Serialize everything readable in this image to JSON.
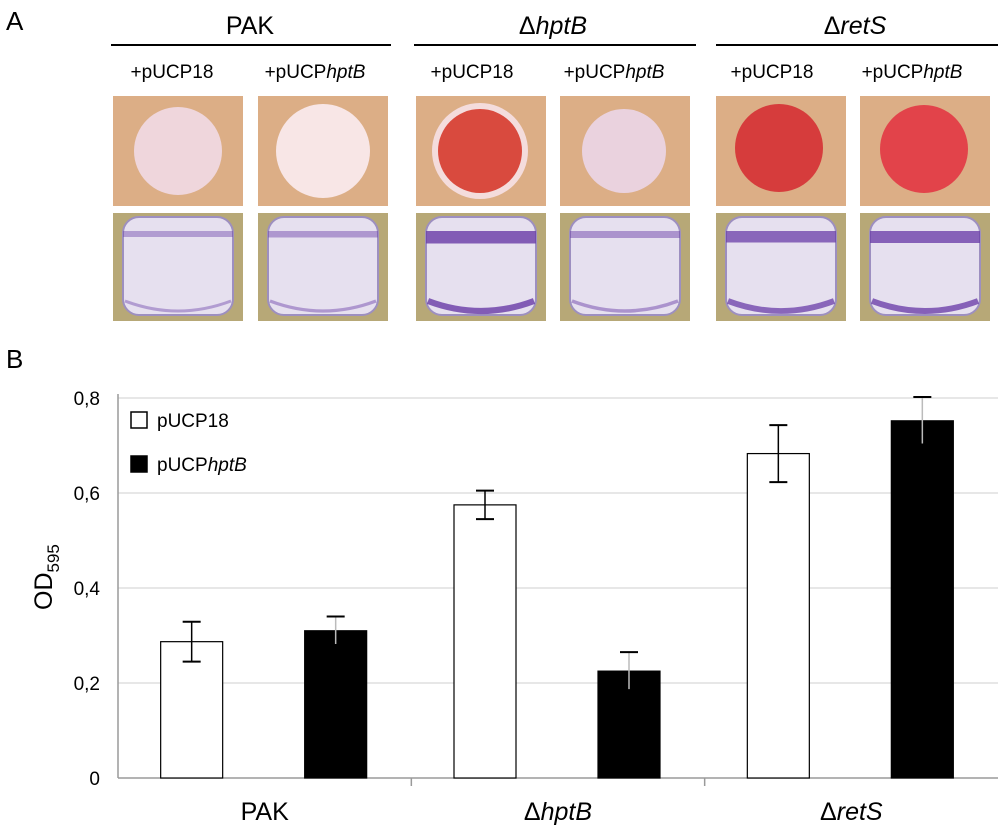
{
  "panel_a": {
    "letter": "A",
    "groups": [
      {
        "label": "PAK",
        "delta": "",
        "italic": ""
      },
      {
        "label": "",
        "delta": "Δ",
        "italic": "hptB"
      },
      {
        "label": "",
        "delta": "Δ",
        "italic": "retS"
      }
    ],
    "plasmids": [
      {
        "prefix": "+pUCP18",
        "italic": ""
      },
      {
        "prefix": "+pUCP",
        "italic": "hptB"
      },
      {
        "prefix": "+pUCP18",
        "italic": ""
      },
      {
        "prefix": "+pUCP",
        "italic": "hptB"
      },
      {
        "prefix": "+pUCP18",
        "italic": ""
      },
      {
        "prefix": "+pUCP",
        "italic": "hptB"
      }
    ],
    "colony_colors": [
      "#efd6dc",
      "#f8e6e6",
      "#d94a3e",
      "#ead2de",
      "#d63c3c",
      "#e2434a"
    ],
    "tube_stain_levels": [
      0.2,
      0.25,
      0.85,
      0.3,
      0.75,
      0.8
    ]
  },
  "panel_b": {
    "letter": "B",
    "chart_data": {
      "type": "bar",
      "categories": [
        {
          "delta": "",
          "italic": "",
          "label": "PAK"
        },
        {
          "delta": "Δ",
          "italic": "hptB",
          "label": ""
        },
        {
          "delta": "Δ",
          "italic": "retS",
          "label": ""
        }
      ],
      "series": [
        {
          "name_prefix": "pUCP18",
          "name_italic": "",
          "color": "#ffffff",
          "values": [
            0.287,
            0.575,
            0.683
          ],
          "errors": [
            0.042,
            0.03,
            0.06
          ]
        },
        {
          "name_prefix": "pUCP",
          "name_italic": "hptB",
          "color": "#000000",
          "values": [
            0.31,
            0.225,
            0.752
          ],
          "errors": [
            0.03,
            0.04,
            0.05
          ]
        }
      ],
      "ylabel_main": "OD",
      "ylabel_sub": "595",
      "ylim": [
        0,
        0.8
      ],
      "yticks": [
        "0",
        "0,2",
        "0,4",
        "0,6",
        "0,8"
      ],
      "grid": true,
      "legend_position": "top-left"
    }
  }
}
